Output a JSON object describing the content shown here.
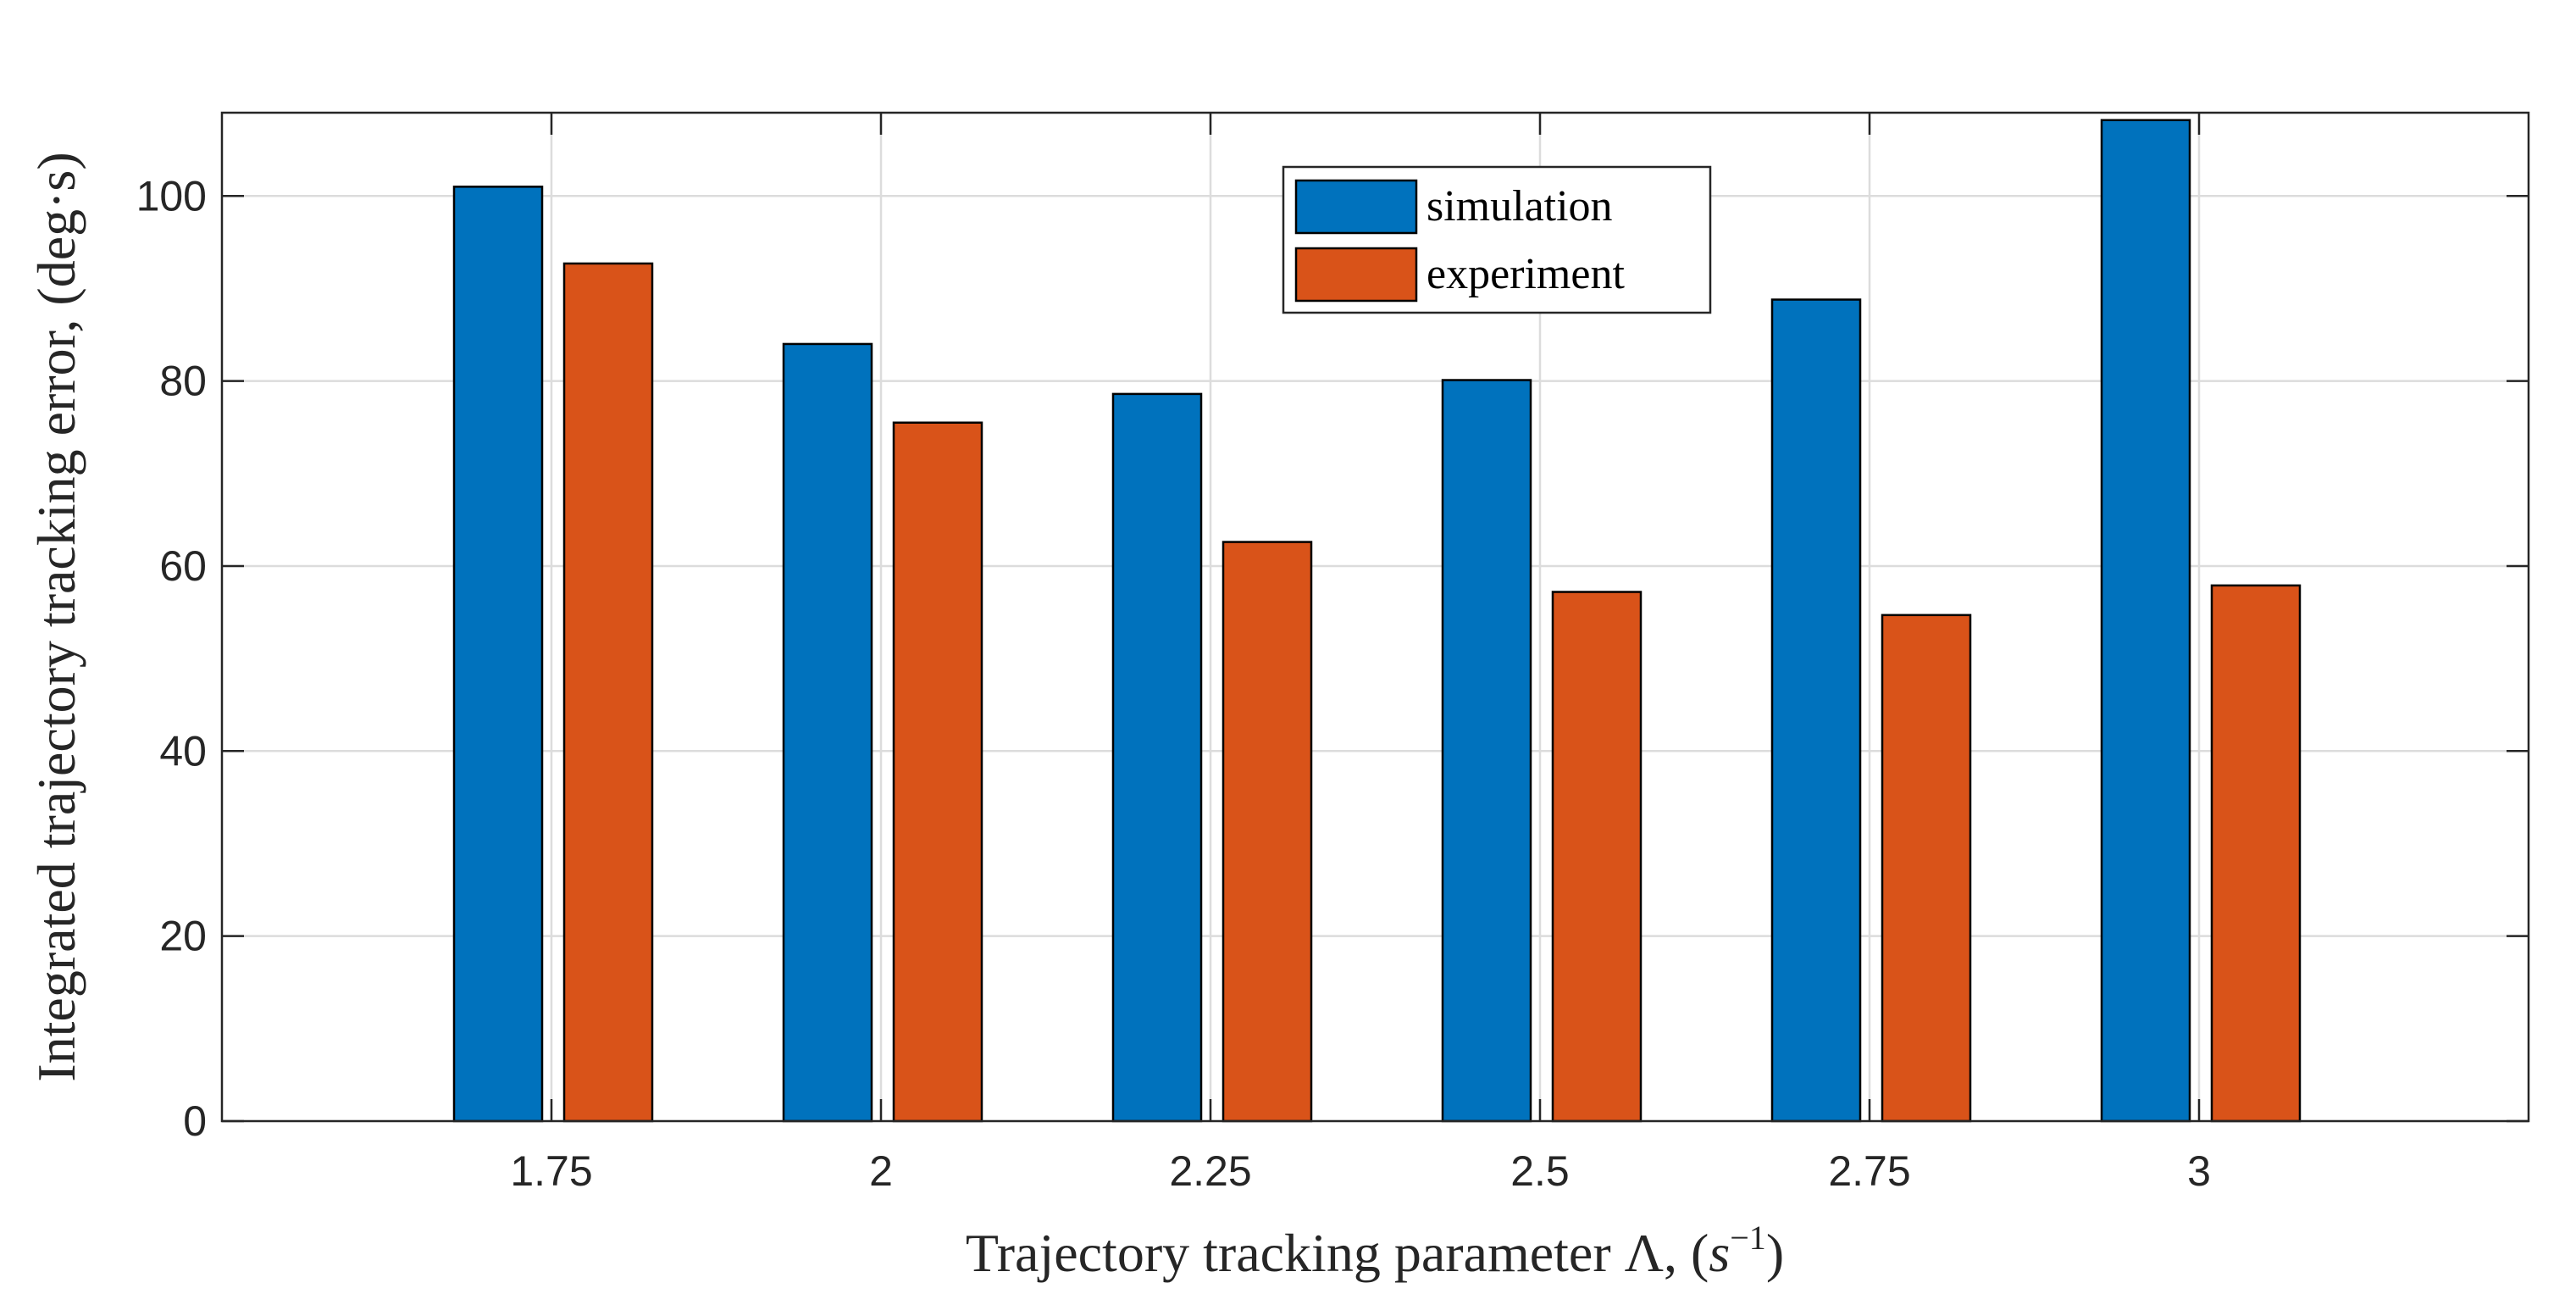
{
  "chart_data": {
    "type": "bar",
    "title": "",
    "xlabel": "Trajectory tracking parameter Λ, (s⁻¹)",
    "xlabel_parts": {
      "main": "Trajectory tracking parameter Λ, (",
      "var": "s",
      "exp": "−1",
      "close": ")"
    },
    "ylabel": "Integrated trajectory tracking error, (deg·s)",
    "categories": [
      "1.75",
      "2",
      "2.25",
      "2.5",
      "2.75",
      "3"
    ],
    "series": [
      {
        "name": "simulation",
        "color": "#0072BD",
        "values": [
          101,
          84,
          78.6,
          80.1,
          88.8,
          108.2
        ]
      },
      {
        "name": "experiment",
        "color": "#D95319",
        "values": [
          92.7,
          75.5,
          62.6,
          57.2,
          54.7,
          57.9
        ]
      }
    ],
    "ylim": [
      0,
      109
    ],
    "yticks": [
      0,
      20,
      40,
      60,
      80,
      100
    ],
    "grid": true,
    "legend_position": "top-center"
  }
}
